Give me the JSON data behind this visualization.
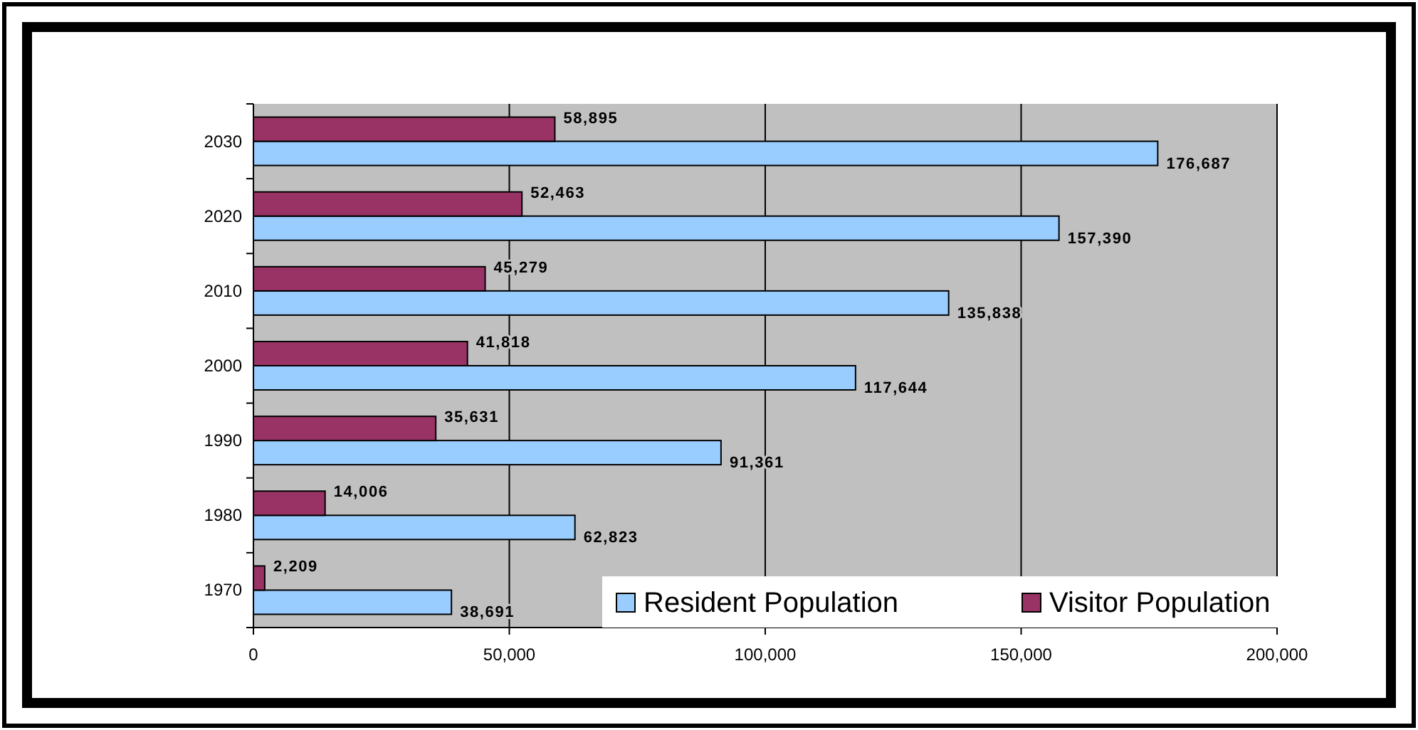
{
  "chart_data": {
    "type": "bar",
    "orientation": "horizontal",
    "categories": [
      "2030",
      "2020",
      "2010",
      "2000",
      "1990",
      "1980",
      "1970"
    ],
    "series": [
      {
        "name": "Resident Population",
        "color": "#99ccff",
        "values": [
          176687,
          157390,
          135838,
          117644,
          91361,
          62823,
          38691
        ],
        "value_labels": [
          "176,687",
          "157,390",
          "135,838",
          "117,644",
          "91,361",
          "62,823",
          "38,691"
        ]
      },
      {
        "name": "Visitor Population",
        "color": "#993366",
        "values": [
          58895,
          52463,
          45279,
          41818,
          35631,
          14006,
          2209
        ],
        "value_labels": [
          "58,895",
          "52,463",
          "45,279",
          "41,818",
          "35,631",
          "14,006",
          "2,209"
        ]
      }
    ],
    "xlim": [
      0,
      200000
    ],
    "xticks": [
      0,
      {
        "value": 50000,
        "label": "50,000"
      },
      {
        "value": 100000,
        "label": "100,000"
      },
      {
        "value": 150000,
        "label": "150,000"
      },
      {
        "value": 200000,
        "label": "200,000"
      }
    ],
    "grid": "x",
    "legend": "bottom right"
  }
}
